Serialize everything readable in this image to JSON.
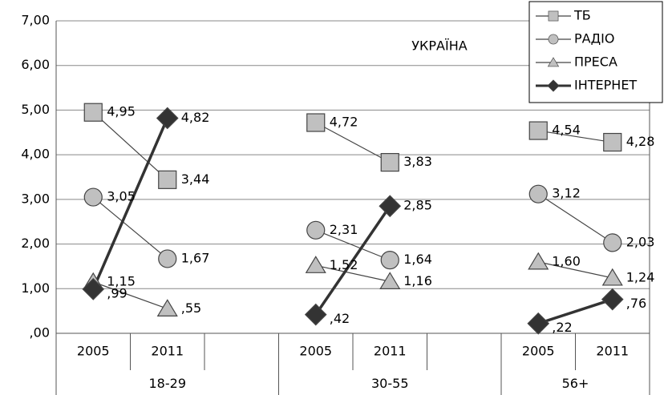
{
  "chart_data": {
    "type": "line",
    "annotation": "УКРАЇНА",
    "categories": [
      "2005",
      "2011",
      null,
      "2005",
      "2011",
      null,
      "2005",
      "2011"
    ],
    "groups": [
      "18-29",
      "30-55",
      "56+"
    ],
    "ylim": [
      0,
      7
    ],
    "yticks": [
      {
        "value": 0,
        "label": ",00"
      },
      {
        "value": 1,
        "label": "1,00"
      },
      {
        "value": 2,
        "label": "2,00"
      },
      {
        "value": 3,
        "label": "3,00"
      },
      {
        "value": 4,
        "label": "4,00"
      },
      {
        "value": 5,
        "label": "5,00"
      },
      {
        "value": 6,
        "label": "6,00"
      },
      {
        "value": 7,
        "label": "7,00"
      }
    ],
    "grid": true,
    "legend": "top-right",
    "series": [
      {
        "name": "ТБ",
        "color": "#c0c0c0",
        "marker": "square",
        "values": [
          4.95,
          3.44,
          null,
          4.72,
          3.83,
          null,
          4.54,
          4.28
        ],
        "value_labels": [
          "4,95",
          "3,44",
          null,
          "4,72",
          "3,83",
          null,
          "4,54",
          "4,28"
        ]
      },
      {
        "name": "РАДІО",
        "color": "#c0c0c0",
        "marker": "circle",
        "values": [
          3.05,
          1.67,
          null,
          2.31,
          1.64,
          null,
          3.12,
          2.03
        ],
        "value_labels": [
          "3,05",
          "1,67",
          null,
          "2,31",
          "1,64",
          null,
          "3,12",
          "2,03"
        ]
      },
      {
        "name": "ПРЕСА",
        "color": "#c0c0c0",
        "marker": "triangle",
        "values": [
          1.15,
          0.55,
          null,
          1.52,
          1.16,
          null,
          1.6,
          1.24
        ],
        "value_labels": [
          "1,15",
          ",55",
          null,
          "1,52",
          "1,16",
          null,
          "1,60",
          "1,24"
        ]
      },
      {
        "name": "ІНТЕРНЕТ",
        "color": "#333333",
        "marker": "diamond",
        "values": [
          0.99,
          4.82,
          null,
          0.42,
          2.85,
          null,
          0.22,
          0.76
        ],
        "value_labels": [
          ",99",
          "4,82",
          null,
          ",42",
          "2,85",
          null,
          ",22",
          ",76"
        ]
      }
    ]
  }
}
